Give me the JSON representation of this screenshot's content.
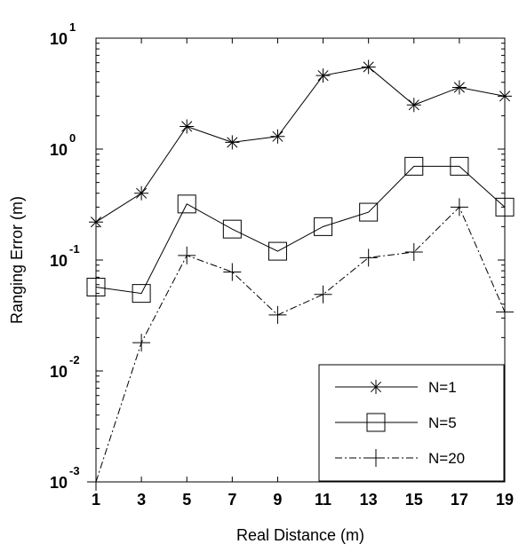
{
  "chart_data": {
    "type": "line",
    "title": "",
    "xlabel": "Real Distance (m)",
    "ylabel": "Ranging Error (m)",
    "yscale": "log",
    "xlim": [
      1,
      19
    ],
    "ylim": [
      0.001,
      10
    ],
    "x": [
      1,
      3,
      5,
      7,
      9,
      11,
      13,
      15,
      17,
      19
    ],
    "x_ticks": [
      "1",
      "3",
      "5",
      "7",
      "9",
      "11",
      "13",
      "15",
      "17",
      "19"
    ],
    "y_ticks": [
      {
        "base": "10",
        "exp": "-3",
        "value": 0.001
      },
      {
        "base": "10",
        "exp": "-2",
        "value": 0.01
      },
      {
        "base": "10",
        "exp": "-1",
        "value": 0.1
      },
      {
        "base": "10",
        "exp": "0",
        "value": 1
      },
      {
        "base": "10",
        "exp": "1",
        "value": 10
      }
    ],
    "legend_position": "bottom-right",
    "grid": false,
    "series": [
      {
        "name": "N=1",
        "marker": "asterisk",
        "line": "solid",
        "values": [
          0.22,
          0.4,
          1.6,
          1.15,
          1.3,
          4.6,
          5.5,
          2.5,
          3.6,
          3.0
        ]
      },
      {
        "name": "N=5",
        "marker": "square",
        "line": "solid",
        "values": [
          0.057,
          0.05,
          0.32,
          0.19,
          0.12,
          0.2,
          0.27,
          0.7,
          0.7,
          0.3
        ]
      },
      {
        "name": "N=20",
        "marker": "plus",
        "line": "dashdot",
        "values": [
          0.001,
          0.018,
          0.11,
          0.078,
          0.032,
          0.049,
          0.105,
          0.118,
          0.3,
          0.034
        ]
      }
    ]
  }
}
